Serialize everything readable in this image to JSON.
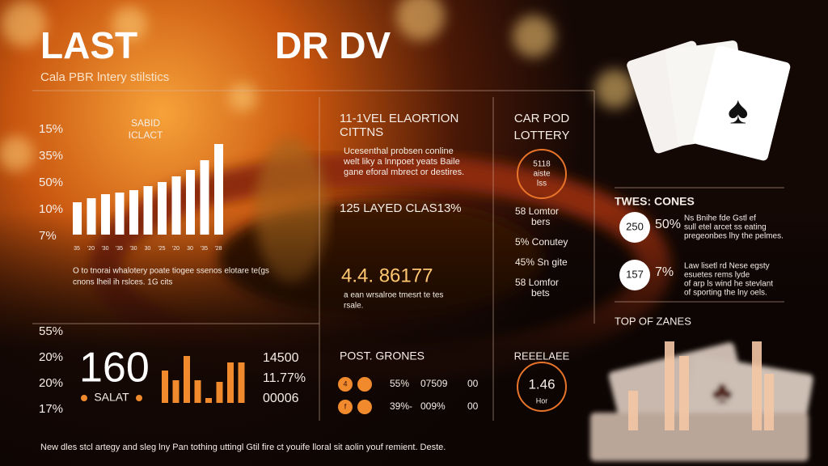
{
  "header": {
    "title_left": "LAST",
    "title_right": "DR DV",
    "subtitle": "Cala PBR lntery stilstics"
  },
  "bar_panel": {
    "label_lines": [
      "SABID",
      "ICLACT"
    ],
    "axis_labels": [
      "15%",
      "35%",
      "50%",
      "10%",
      "7%"
    ],
    "bars": [
      40,
      45,
      50,
      52,
      55,
      60,
      65,
      72,
      80,
      92,
      112
    ],
    "bar_labels": [
      "35",
      "'20",
      "'30",
      "'35",
      "'30",
      "30",
      "'25",
      "'20",
      "30",
      "'35",
      "'28"
    ],
    "notes": [
      "O to tnorai whalotery poate tiogee ssenos elotare te(gs",
      "cnons lheil ih rslces.      1G cits"
    ]
  },
  "middle": {
    "heading": [
      "11-1VEL ELAORTION",
      "CITTNS"
    ],
    "paragraph": [
      "Ucesenthal probsen conline",
      "welt liky a lnnpoet yeats Baile",
      "gane eforal mbrect or destires."
    ],
    "subheading": "125 LAYED CLAS13%",
    "highlight": "4.4. 86177",
    "notes": [
      "a ean wrsalroe tmesrt te tes",
      "rsale."
    ]
  },
  "lottery": {
    "heading": [
      "CAR POD",
      "LOTTERY"
    ],
    "badge": [
      "5118",
      "aiste",
      "lss"
    ],
    "items": [
      [
        "58 Lomtor",
        "bers"
      ],
      [
        "5% Conutey"
      ],
      [
        "45% Sn gite"
      ],
      [
        "58 Lomfor",
        "bets"
      ]
    ]
  },
  "zones": {
    "heading": "TWES: CONES",
    "rows": [
      {
        "badge": "250",
        "value": "50%",
        "text": [
          "Ns Bnihe fde Gstl ef",
          "sull etel arcet ss eating",
          "pregeonbes lhy the pelmes."
        ]
      },
      {
        "badge": "157",
        "value": "7%",
        "text": [
          "Law lisetl rd Nese egsty",
          "esuetes rems lyde",
          "of arp ls wind he stevlant",
          "of sporting the lny oels."
        ]
      }
    ],
    "subheading": "TOP OF ZANES",
    "bars": [
      49,
      110,
      92,
      110,
      70
    ]
  },
  "bottom": {
    "axis_labels": [
      "55%",
      "20%",
      "20%",
      "17%"
    ],
    "big_number": "160",
    "big_label": "SALAT",
    "bars": [
      40,
      28,
      58,
      28,
      6,
      26,
      50,
      50
    ],
    "stats": [
      "14500",
      "11.77%",
      "00006"
    ]
  },
  "post": {
    "heading": "POST. GRONES",
    "rows": [
      [
        "4",
        "55%",
        "07509",
        "00"
      ],
      [
        "f",
        "39%-",
        "009%",
        "00"
      ]
    ]
  },
  "release": {
    "heading": "REEELAEE",
    "badge": [
      "1.46",
      "Hor"
    ]
  },
  "footer": "New dles stcl artegy and sleg lny Pan tothing uttingl Gtil fire ct youife lloral sit aolin youf remient. Deste."
}
